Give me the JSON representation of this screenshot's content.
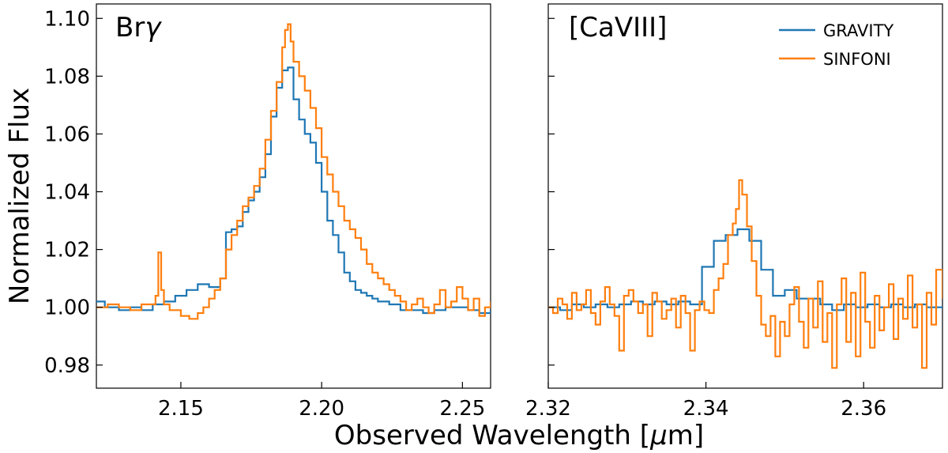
{
  "colors": {
    "gravity": "#1f77b4",
    "sinfoni": "#ff7f0e"
  },
  "chart_data": [
    {
      "type": "line",
      "panel_label_main": "Br",
      "panel_label_greek": "γ",
      "ylabel": "Normalized Flux",
      "xlim": [
        2.12,
        2.26
      ],
      "ylim": [
        0.972,
        1.105
      ],
      "xticks": [
        2.15,
        2.2,
        2.25
      ],
      "xtick_labels": [
        "2.15",
        "2.20",
        "2.25"
      ],
      "yticks": [
        0.98,
        1.0,
        1.02,
        1.04,
        1.06,
        1.08,
        1.1
      ],
      "ytick_labels": [
        "0.98",
        "1.00",
        "1.02",
        "1.04",
        "1.06",
        "1.08",
        "1.10"
      ],
      "series": [
        {
          "name": "GRAVITY",
          "style": "step",
          "x": [
            2.12,
            2.123,
            2.128,
            2.132,
            2.136,
            2.14,
            2.144,
            2.148,
            2.152,
            2.156,
            2.16,
            2.164,
            2.166,
            2.168,
            2.17,
            2.172,
            2.174,
            2.176,
            2.178,
            2.18,
            2.182,
            2.184,
            2.186,
            2.188,
            2.19,
            2.192,
            2.194,
            2.196,
            2.198,
            2.2,
            2.202,
            2.204,
            2.206,
            2.208,
            2.21,
            2.212,
            2.214,
            2.216,
            2.218,
            2.22,
            2.224,
            2.228,
            2.232,
            2.236,
            2.24,
            2.244,
            2.248,
            2.252,
            2.256,
            2.26
          ],
          "y": [
            1.002,
            1.0,
            0.999,
            1.0,
            0.999,
            1.001,
            1.002,
            1.004,
            1.006,
            1.008,
            1.007,
            1.01,
            1.026,
            1.027,
            1.028,
            1.033,
            1.037,
            1.04,
            1.045,
            1.053,
            1.066,
            1.076,
            1.082,
            1.083,
            1.072,
            1.065,
            1.06,
            1.057,
            1.05,
            1.04,
            1.03,
            1.025,
            1.019,
            1.012,
            1.009,
            1.006,
            1.005,
            1.004,
            1.003,
            1.002,
            1.001,
            0.999,
            0.999,
            0.998,
            0.999,
            1.0,
            1.0,
            0.999,
            0.998,
            0.999
          ]
        },
        {
          "name": "SINFONI",
          "style": "step",
          "x": [
            2.12,
            2.124,
            2.128,
            2.132,
            2.136,
            2.139,
            2.141,
            2.142,
            2.143,
            2.144,
            2.146,
            2.15,
            2.153,
            2.156,
            2.158,
            2.16,
            2.162,
            2.164,
            2.166,
            2.168,
            2.17,
            2.172,
            2.174,
            2.176,
            2.178,
            2.18,
            2.182,
            2.184,
            2.186,
            2.187,
            2.188,
            2.189,
            2.19,
            2.192,
            2.194,
            2.196,
            2.198,
            2.2,
            2.202,
            2.204,
            2.206,
            2.208,
            2.21,
            2.212,
            2.214,
            2.216,
            2.218,
            2.22,
            2.222,
            2.224,
            2.226,
            2.228,
            2.23,
            2.232,
            2.234,
            2.236,
            2.238,
            2.24,
            2.242,
            2.244,
            2.246,
            2.248,
            2.25,
            2.252,
            2.254,
            2.256,
            2.258,
            2.26
          ],
          "y": [
            1.0,
            1.001,
            1.0,
            0.999,
            1.001,
            1.001,
            1.004,
            1.019,
            1.006,
            1.001,
            0.999,
            0.997,
            0.996,
            0.998,
            1.0,
            1.003,
            1.006,
            1.01,
            1.02,
            1.025,
            1.03,
            1.035,
            1.038,
            1.042,
            1.048,
            1.058,
            1.068,
            1.078,
            1.09,
            1.096,
            1.098,
            1.092,
            1.085,
            1.08,
            1.075,
            1.069,
            1.062,
            1.052,
            1.046,
            1.04,
            1.035,
            1.03,
            1.027,
            1.024,
            1.02,
            1.015,
            1.012,
            1.01,
            1.008,
            1.006,
            1.004,
            1.002,
            0.999,
            1.001,
            1.003,
            1.0,
            0.998,
            1.001,
            1.006,
            1.0,
            1.002,
            1.007,
            1.003,
            0.999,
            1.003,
            0.997,
            1.0,
            1.002
          ]
        }
      ]
    },
    {
      "type": "line",
      "panel_label": "[CaVIII]",
      "xlim": [
        2.32,
        2.37
      ],
      "ylim": [
        0.972,
        1.105
      ],
      "xticks": [
        2.32,
        2.34,
        2.36
      ],
      "xtick_labels": [
        "2.32",
        "2.34",
        "2.36"
      ],
      "yticks": [
        0.98,
        1.0,
        1.02,
        1.04,
        1.06,
        1.08,
        1.1
      ],
      "legend": {
        "loc": "top-right",
        "entries": [
          "GRAVITY",
          "SINFONI"
        ]
      },
      "series": [
        {
          "name": "GRAVITY",
          "style": "step",
          "x": [
            2.32,
            2.3215,
            2.323,
            2.3245,
            2.326,
            2.3275,
            2.329,
            2.3305,
            2.332,
            2.3335,
            2.335,
            2.3365,
            2.338,
            2.3395,
            2.341,
            2.3425,
            2.344,
            2.3455,
            2.347,
            2.3485,
            2.35,
            2.3515,
            2.353,
            2.3545,
            2.356,
            2.3575,
            2.359,
            2.3605,
            2.362,
            2.3635,
            2.365,
            2.3665,
            2.368,
            2.37
          ],
          "y": [
            1.0,
            0.999,
            1.001,
            1.0,
            1.001,
            1.0,
            1.001,
            1.002,
            1.001,
            1.002,
            1.001,
            1.002,
            1.001,
            1.014,
            1.023,
            1.025,
            1.027,
            1.023,
            1.013,
            1.004,
            1.006,
            1.003,
            1.003,
            1.001,
            0.999,
            1.001,
            1.0,
            1.001,
            1.0,
            1.001,
            1.0,
            1.001,
            1.0,
            1.0
          ]
        },
        {
          "name": "SINFONI",
          "style": "step",
          "x": [
            2.32,
            2.3206,
            2.3212,
            2.3218,
            2.3224,
            2.323,
            2.3236,
            2.3242,
            2.3248,
            2.3254,
            2.326,
            2.3266,
            2.3272,
            2.3278,
            2.3284,
            2.329,
            2.3296,
            2.3302,
            2.3308,
            2.3314,
            2.332,
            2.3326,
            2.3332,
            2.3338,
            2.3344,
            2.335,
            2.3356,
            2.3362,
            2.3368,
            2.3374,
            2.338,
            2.3386,
            2.3392,
            2.3398,
            2.3404,
            2.341,
            2.3416,
            2.3422,
            2.3428,
            2.3434,
            2.3438,
            2.3442,
            2.3446,
            2.3452,
            2.3458,
            2.3464,
            2.347,
            2.3476,
            2.3482,
            2.3488,
            2.3494,
            2.35,
            2.3506,
            2.3512,
            2.3518,
            2.3524,
            2.353,
            2.3536,
            2.3542,
            2.3548,
            2.3554,
            2.356,
            2.3566,
            2.3572,
            2.3578,
            2.3584,
            2.359,
            2.3596,
            2.3602,
            2.3608,
            2.3614,
            2.362,
            2.3626,
            2.3632,
            2.3638,
            2.3644,
            2.365,
            2.3656,
            2.3662,
            2.3668,
            2.3674,
            2.368,
            2.3686,
            2.3692,
            2.37
          ],
          "y": [
            1.0,
            0.998,
            1.003,
            1.001,
            0.996,
            1.005,
            0.999,
            1.001,
            1.006,
            0.998,
            0.994,
            1.002,
            1.007,
            1.001,
            0.997,
            0.985,
            1.004,
            1.006,
            1.002,
            0.998,
            1.001,
            0.99,
            1.005,
            1.002,
            0.996,
            0.999,
            1.003,
            0.993,
            1.004,
            0.998,
            0.985,
            0.999,
            1.002,
            0.999,
            0.998,
            1.006,
            1.01,
            1.015,
            1.025,
            1.029,
            1.034,
            1.044,
            1.039,
            1.028,
            1.016,
            1.004,
            0.994,
            0.99,
            0.997,
            0.983,
            0.995,
            0.99,
            1.001,
            1.007,
            0.995,
            0.986,
            1.003,
            0.993,
            1.009,
            0.988,
            0.998,
            0.979,
            1.001,
            1.01,
            0.988,
            1.005,
            0.983,
            1.012,
            0.995,
            0.986,
            1.004,
            0.992,
            1.0,
            1.008,
            0.989,
            1.003,
            0.996,
            1.011,
            0.993,
            1.001,
            0.979,
            1.005,
            0.994,
            1.013,
            1.003
          ]
        }
      ]
    }
  ],
  "xlabel_main": "Observed Wavelength [",
  "xlabel_greek": "μ",
  "xlabel_tail": "m]"
}
